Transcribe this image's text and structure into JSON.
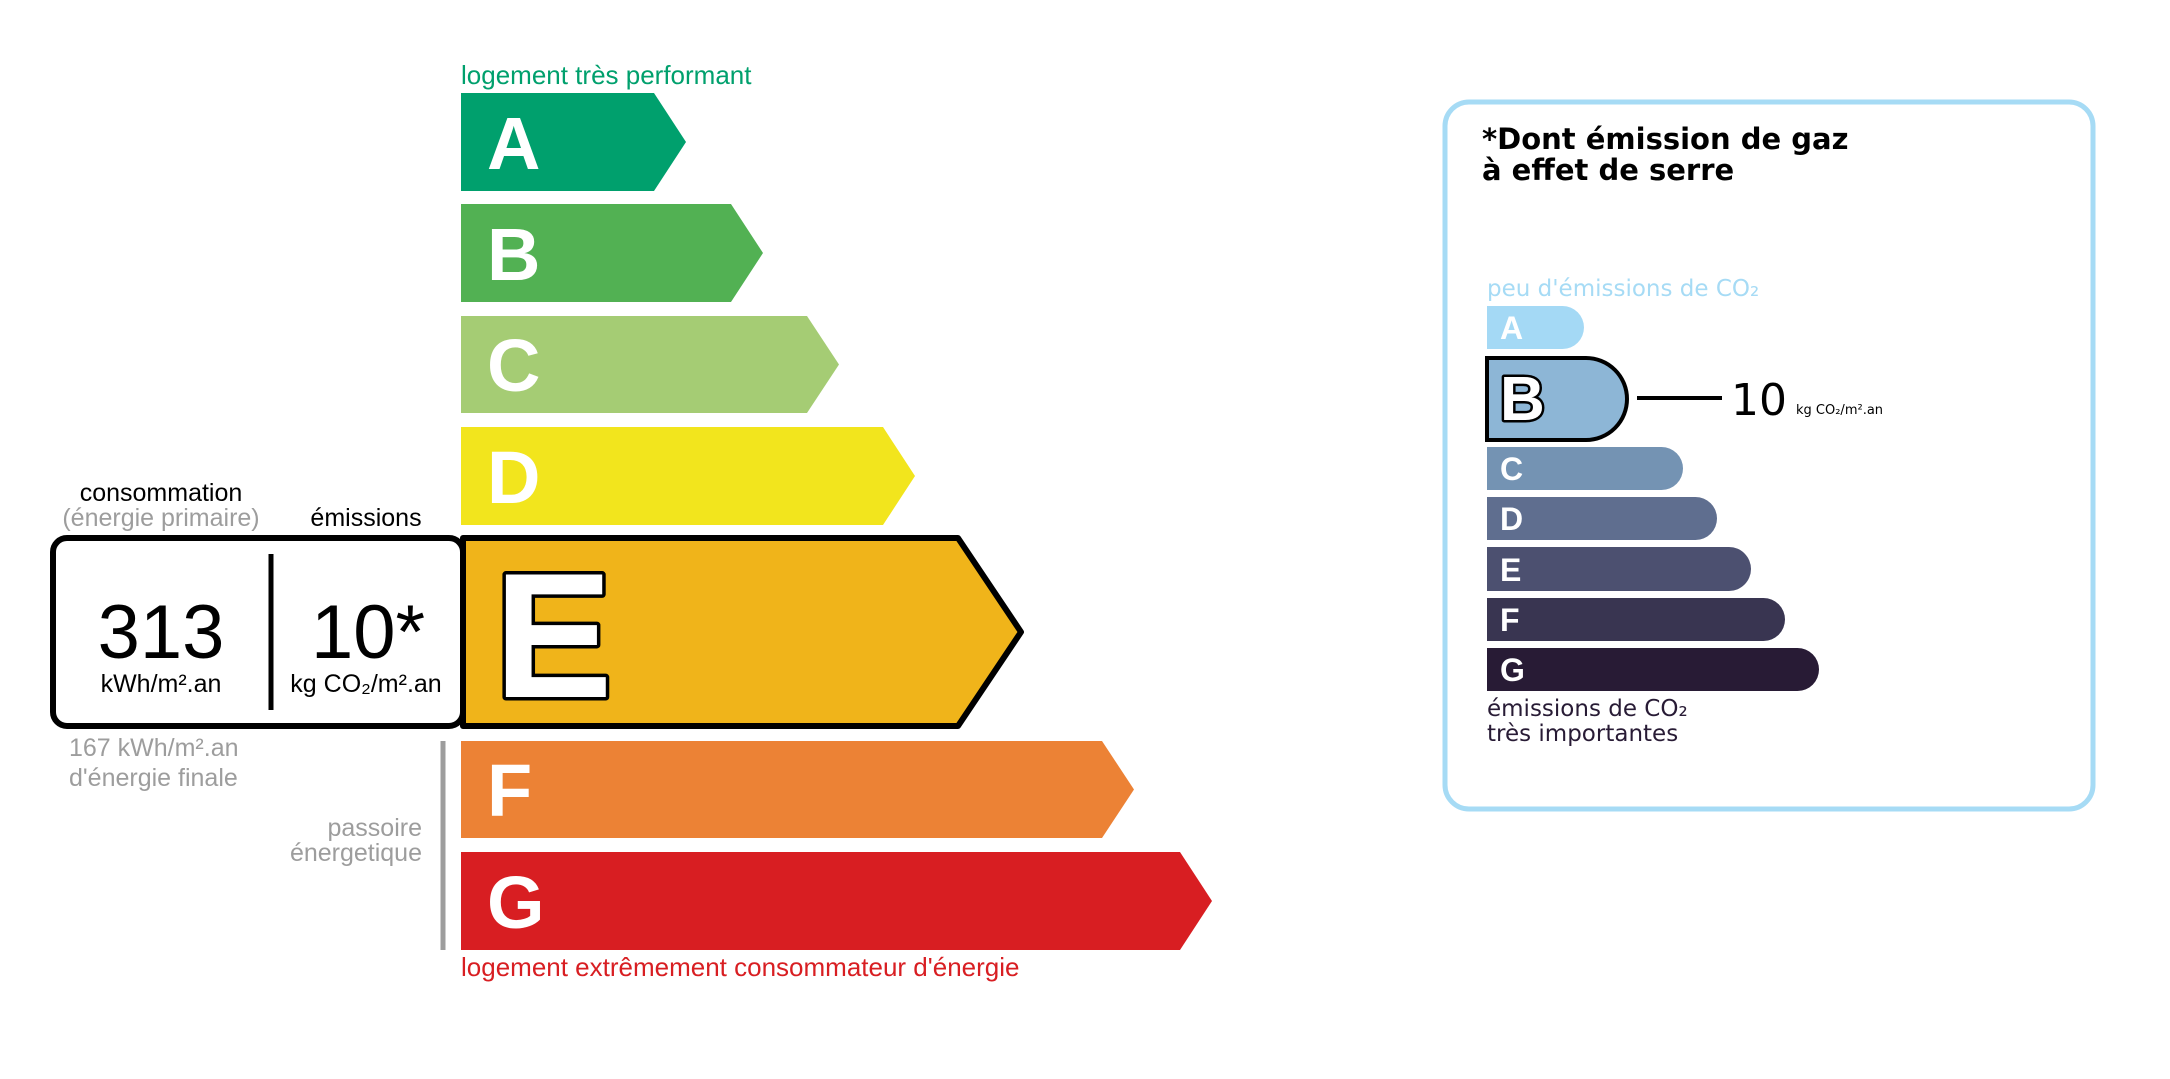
{
  "energy": {
    "top_label": "logement très performant",
    "bottom_label": "logement extrêmement consommateur d'énergie",
    "top_label_color": "#00a06d",
    "bottom_label_color": "#d81e22",
    "grades": [
      {
        "letter": "A",
        "color": "#00a06d"
      },
      {
        "letter": "B",
        "color": "#52b153"
      },
      {
        "letter": "C",
        "color": "#a5cc74"
      },
      {
        "letter": "D",
        "color": "#f2e51d"
      },
      {
        "letter": "E",
        "color": "#f0b41a"
      },
      {
        "letter": "F",
        "color": "#ec8235"
      },
      {
        "letter": "G",
        "color": "#d81e22"
      }
    ],
    "current_grade": "E",
    "consumption_label": "consommation",
    "consumption_sublabel": "(énergie primaire)",
    "emissions_label": "émissions",
    "consumption_value": "313",
    "consumption_unit": "kWh/m².an",
    "emissions_value": "10*",
    "emissions_unit": "kg CO₂/m².an",
    "final_energy_line1": "167 kWh/m².an",
    "final_energy_line2": "d'énergie finale",
    "passoire_line1": "passoire",
    "passoire_line2": "énergetique"
  },
  "ges": {
    "title_line1": "*Dont émission de gaz",
    "title_line2": "à effet de serre",
    "top_label": "peu d'émissions de CO₂",
    "bottom_label_line1": "émissions de CO₂",
    "bottom_label_line2": "très importantes",
    "border_color": "#a6dbf5",
    "grades": [
      {
        "letter": "A",
        "color": "#a4d9f5"
      },
      {
        "letter": "B",
        "color": "#8db6d6"
      },
      {
        "letter": "C",
        "color": "#7493b3"
      },
      {
        "letter": "D",
        "color": "#5f6e8f"
      },
      {
        "letter": "E",
        "color": "#4c5070"
      },
      {
        "letter": "F",
        "color": "#393551"
      },
      {
        "letter": "G",
        "color": "#281b35"
      }
    ],
    "current_grade": "B",
    "value": "10",
    "unit": "kg CO₂/m².an"
  }
}
